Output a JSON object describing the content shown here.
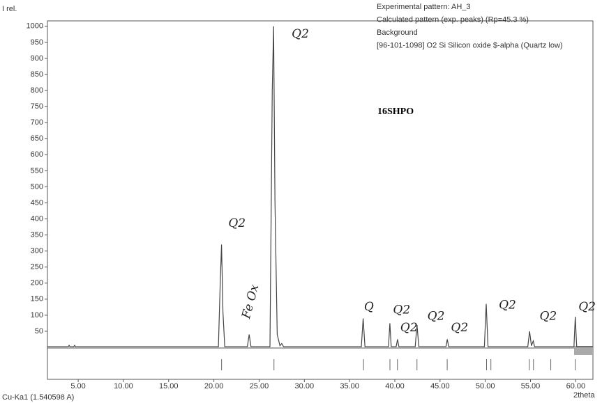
{
  "chart_data": {
    "type": "line",
    "y_label": "I rel.",
    "x_label": "2theta",
    "wavelength_label": "Cu-Ka1 (1.540598 A)",
    "sample_label": "16SHPO",
    "legend": [
      {
        "name": "Experimental pattern: AH_3",
        "color": "#333333"
      },
      {
        "name": "Calculated pattern (exp. peaks) (Rp=45.3 %)",
        "color": "#333333"
      },
      {
        "name": "Background",
        "color": "#999999"
      },
      {
        "name": "[96-101-1098] O2 Si Silicon oxide $-alpha (Quartz low)",
        "color": "#333333"
      }
    ],
    "series": [
      {
        "name": "Experimental pattern: AH_3",
        "color": "#444444",
        "x": [
          1.6,
          3.9,
          4.0,
          4.1,
          4.5,
          4.6,
          4.7,
          20.5,
          20.7,
          20.85,
          21.0,
          21.2,
          23.7,
          23.9,
          24.1,
          26.2,
          26.45,
          26.6,
          26.75,
          27.0,
          27.3,
          27.5,
          27.7,
          36.3,
          36.5,
          36.7,
          39.3,
          39.45,
          39.6,
          40.15,
          40.3,
          40.45,
          42.25,
          42.45,
          42.65,
          45.65,
          45.8,
          45.95,
          49.9,
          50.1,
          50.3,
          54.7,
          54.9,
          55.1,
          55.3,
          55.45,
          59.8,
          59.95,
          60.1,
          61.9
        ],
        "values": [
          2,
          2,
          6,
          2,
          2,
          6,
          2,
          2,
          200,
          320,
          110,
          2,
          2,
          40,
          2,
          2,
          800,
          1000,
          450,
          40,
          5,
          12,
          2,
          2,
          90,
          2,
          2,
          75,
          2,
          2,
          25,
          2,
          2,
          70,
          2,
          2,
          25,
          2,
          2,
          135,
          2,
          2,
          50,
          5,
          20,
          2,
          2,
          95,
          2,
          2
        ]
      }
    ],
    "reference_peaks": [
      20.85,
      26.64,
      36.54,
      39.46,
      40.29,
      42.45,
      45.79,
      50.14,
      50.62,
      54.87,
      55.33,
      57.24,
      59.95
    ],
    "annotations": [
      {
        "text": "Q2",
        "x": 28.6,
        "y": 975
      },
      {
        "text": "Q2",
        "x": 21.6,
        "y": 385
      },
      {
        "text": "Fe Ox",
        "x": 23.6,
        "y": 90
      },
      {
        "text": "Q",
        "x": 36.6,
        "y": 125
      },
      {
        "text": "Q2",
        "x": 39.8,
        "y": 115
      },
      {
        "text": "Q2",
        "x": 40.6,
        "y": 60
      },
      {
        "text": "Q2",
        "x": 43.6,
        "y": 95
      },
      {
        "text": "Q2",
        "x": 46.2,
        "y": 60
      },
      {
        "text": "Q2",
        "x": 51.5,
        "y": 130
      },
      {
        "text": "Q2",
        "x": 56.0,
        "y": 95
      },
      {
        "text": "Q2",
        "x": 60.3,
        "y": 125
      }
    ],
    "xlim": [
      1.6,
      61.9
    ],
    "ylim": [
      0,
      1017
    ],
    "xticks": [
      {
        "value": 5,
        "label": "5.00"
      },
      {
        "value": 10,
        "label": "10.00"
      },
      {
        "value": 15,
        "label": "15.00"
      },
      {
        "value": 20,
        "label": "20.00"
      },
      {
        "value": 25,
        "label": "25.00"
      },
      {
        "value": 30,
        "label": "30.00"
      },
      {
        "value": 35,
        "label": "35.00"
      },
      {
        "value": 40,
        "label": "40.00"
      },
      {
        "value": 45,
        "label": "45.00"
      },
      {
        "value": 50,
        "label": "50.00"
      },
      {
        "value": 55,
        "label": "55.00"
      },
      {
        "value": 60,
        "label": "60.00"
      }
    ],
    "yticks": [
      50,
      100,
      150,
      200,
      250,
      300,
      350,
      400,
      450,
      500,
      550,
      600,
      650,
      700,
      750,
      800,
      850,
      900,
      950,
      1000
    ],
    "grid": false
  }
}
